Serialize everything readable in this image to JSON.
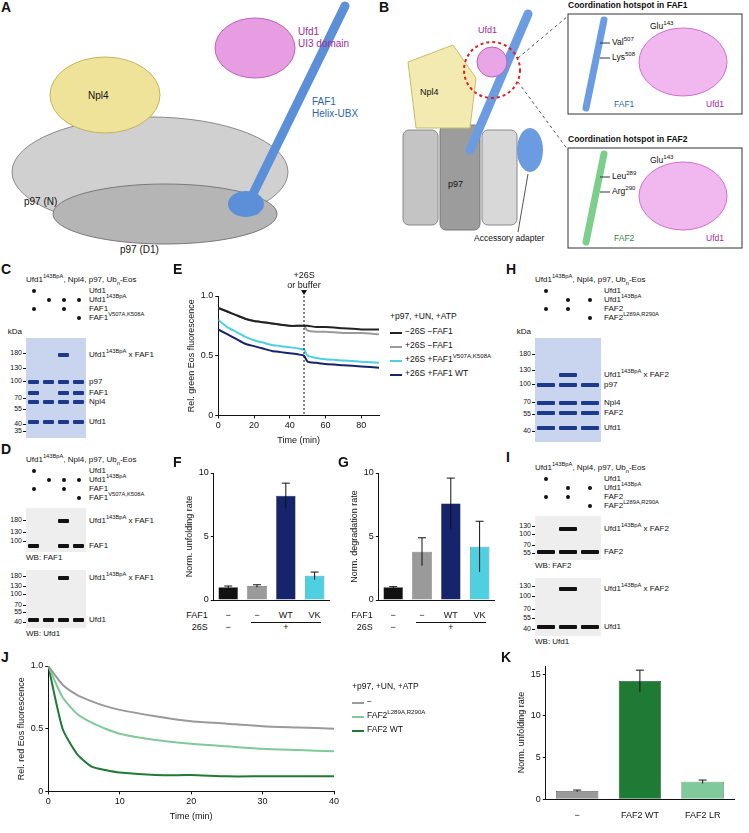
{
  "figure": {
    "A": {
      "letter": "A",
      "ufd1": "Ufd1",
      "ufd1_domain": "UI3 domain",
      "faf1": "FAF1",
      "faf1_domain": "Helix-UBX",
      "npl4": "Npl4",
      "p97_n": "p97 (N)",
      "p97_d1": "p97 (D1)"
    },
    "B": {
      "letter": "B",
      "ufd1": "Ufd1",
      "npl4": "Npl4",
      "p97": "p97",
      "adapter": "Accessory adapter",
      "insets": [
        {
          "title": "Coordination hotspot in FAF1",
          "residues": [
            [
              "Val",
              {
                "sup": "507"
              }
            ],
            [
              "Lys",
              {
                "sup": "508"
              }
            ]
          ],
          "partner_residue": [
            "Glu",
            {
              "sup": "143"
            }
          ],
          "helix": "FAF1",
          "partner": "Ufd1"
        },
        {
          "title": "Coordination hotspot in FAF2",
          "residues": [
            [
              "Leu",
              {
                "sup": "289"
              }
            ],
            [
              "Arg",
              {
                "sup": "290"
              }
            ]
          ],
          "partner_residue": [
            "Glu",
            {
              "sup": "143"
            }
          ],
          "helix": "FAF2",
          "partner": "Ufd1"
        }
      ]
    },
    "C": {
      "letter": "C",
      "header": [
        "Ufd1",
        {
          "sup": "143BpA"
        },
        ", Npl4, p97, Ub",
        {
          "sub": "n"
        },
        "-Eos"
      ],
      "rows": [
        {
          "label": [
            "Ufd1"
          ],
          "lanes": [
            true,
            false,
            false,
            false
          ]
        },
        {
          "label": [
            "Ufd1",
            {
              "sup": "143BpA"
            }
          ],
          "lanes": [
            false,
            true,
            true,
            true
          ]
        },
        {
          "label": [
            "FAF1"
          ],
          "lanes": [
            true,
            false,
            true,
            false
          ]
        },
        {
          "label": [
            "FAF1",
            {
              "sup": "V507A,K508A"
            }
          ],
          "lanes": [
            false,
            false,
            false,
            true
          ]
        }
      ],
      "blots": [
        {
          "kda_label": "kDa",
          "markers": [
            180,
            130,
            100,
            70,
            55,
            40,
            35
          ],
          "bands": [
            {
              "label": [
                "Ufd1",
                {
                  "sup": "143BpA"
                },
                " x FAF1"
              ],
              "lanes": [
                false,
                false,
                true,
                false
              ]
            },
            {
              "label": [
                "p97"
              ],
              "lanes": [
                true,
                true,
                true,
                true
              ]
            },
            {
              "label": [
                "FAF1"
              ],
              "lanes": [
                true,
                false,
                true,
                true
              ]
            },
            {
              "label": [
                "Npl4"
              ],
              "lanes": [
                true,
                true,
                true,
                true
              ]
            },
            {
              "label": [
                "Ufd1"
              ],
              "lanes": [
                true,
                true,
                true,
                true
              ]
            }
          ]
        }
      ]
    },
    "D": {
      "letter": "D",
      "header": [
        "Ufd1",
        {
          "sup": "143BpA"
        },
        ", Npl4, p97, Ub",
        {
          "sub": "n"
        },
        "-Eos"
      ],
      "rows": [
        {
          "label": [
            "Ufd1"
          ],
          "lanes": [
            true,
            false,
            false,
            false
          ]
        },
        {
          "label": [
            "Ufd1",
            {
              "sup": "143BpA"
            }
          ],
          "lanes": [
            false,
            true,
            true,
            true
          ]
        },
        {
          "label": [
            "FAF1"
          ],
          "lanes": [
            true,
            false,
            true,
            false
          ]
        },
        {
          "label": [
            "FAF1",
            {
              "sup": "V507A,K508A"
            }
          ],
          "lanes": [
            false,
            false,
            false,
            true
          ]
        }
      ],
      "blots": [
        {
          "caption": "WB: FAF1",
          "markers": [
            180,
            130,
            100
          ],
          "bands": [
            {
              "label": [
                "Ufd1",
                {
                  "sup": "143BpA"
                },
                " x FAF1"
              ],
              "lanes": [
                false,
                false,
                true,
                false
              ]
            },
            {
              "label": [
                "FAF1"
              ],
              "lanes": [
                true,
                false,
                true,
                true
              ]
            }
          ]
        },
        {
          "caption": "WB: Ufd1",
          "markers": [
            180,
            130,
            100,
            70,
            55,
            40
          ],
          "bands": [
            {
              "label": [
                "Ufd1",
                {
                  "sup": "143BpA"
                },
                " x FAF1"
              ],
              "lanes": [
                false,
                false,
                true,
                false
              ]
            },
            {
              "label": [
                "Ufd1"
              ],
              "lanes": [
                true,
                true,
                true,
                true
              ]
            }
          ]
        }
      ]
    },
    "H": {
      "letter": "H",
      "header": [
        "Ufd1",
        {
          "sup": "143BpA"
        },
        ", Npl4, p97, Ub",
        {
          "sub": "n"
        },
        "-Eos"
      ],
      "rows": [
        {
          "label": [
            "Ufd1"
          ],
          "lanes": [
            true,
            false,
            false
          ]
        },
        {
          "label": [
            "Ufd1",
            {
              "sup": "143BpA"
            }
          ],
          "lanes": [
            false,
            true,
            true
          ]
        },
        {
          "label": [
            "FAF2"
          ],
          "lanes": [
            true,
            true,
            false
          ]
        },
        {
          "label": [
            "FAF2",
            {
              "sup": "L289A,R290A"
            }
          ],
          "lanes": [
            false,
            false,
            true
          ]
        }
      ],
      "blots": [
        {
          "kda_label": "kDa",
          "markers": [
            180,
            130,
            100,
            70,
            55,
            40
          ],
          "bands": [
            {
              "label": [
                "Ufd1",
                {
                  "sup": "143BpA"
                },
                " x FAF2"
              ],
              "lanes": [
                false,
                true,
                false
              ]
            },
            {
              "label": [
                "p97"
              ],
              "lanes": [
                true,
                true,
                true
              ]
            },
            {
              "label": [
                "Npl4"
              ],
              "lanes": [
                true,
                true,
                true
              ]
            },
            {
              "label": [
                "FAF2"
              ],
              "lanes": [
                true,
                true,
                true
              ]
            },
            {
              "label": [
                "Ufd1"
              ],
              "lanes": [
                true,
                true,
                true
              ]
            }
          ]
        }
      ]
    },
    "I": {
      "letter": "I",
      "header": [
        "Ufd1",
        {
          "sup": "143BpA"
        },
        ", Npl4, p97, Ub",
        {
          "sub": "n"
        },
        "-Eos"
      ],
      "rows": [
        {
          "label": [
            "Ufd1"
          ],
          "lanes": [
            true,
            false,
            false
          ]
        },
        {
          "label": [
            "Ufd1",
            {
              "sup": "143BpA"
            }
          ],
          "lanes": [
            false,
            true,
            true
          ]
        },
        {
          "label": [
            "FAF2"
          ],
          "lanes": [
            true,
            true,
            false
          ]
        },
        {
          "label": [
            "FAF2",
            {
              "sup": "L289A,R290A"
            }
          ],
          "lanes": [
            false,
            false,
            true
          ]
        }
      ],
      "blots": [
        {
          "caption": "WB: FAF2",
          "markers": [
            130,
            100,
            70,
            55
          ],
          "bands": [
            {
              "label": [
                "Ufd1",
                {
                  "sup": "143BpA"
                },
                " x FAF2"
              ],
              "lanes": [
                false,
                true,
                false
              ]
            },
            {
              "label": [
                "FAF2"
              ],
              "lanes": [
                true,
                true,
                true
              ]
            }
          ]
        },
        {
          "caption": "WB: Ufd1",
          "markers": [
            130,
            100,
            70,
            55,
            40
          ],
          "bands": [
            {
              "label": [
                "Ufd1",
                {
                  "sup": "143BpA"
                },
                " x FAF2"
              ],
              "lanes": [
                false,
                true,
                false
              ]
            },
            {
              "label": [
                "Ufd1"
              ],
              "lanes": [
                true,
                true,
                true
              ]
            }
          ]
        }
      ]
    }
  },
  "chart_data": [
    {
      "panel": "E",
      "type": "line",
      "grid": false,
      "legend": "right",
      "x_label": "Time (min)",
      "y_label": "Rel. green Eos fluorescence",
      "legend_title": "+p97, +UN, +ATP",
      "x": [
        0,
        5,
        10,
        15,
        20,
        25,
        30,
        35,
        40,
        45,
        48,
        50,
        55,
        60,
        70,
        80,
        90
      ],
      "xlim": [
        0,
        90
      ],
      "xticks": [
        0,
        20,
        40,
        60,
        80
      ],
      "ylim": [
        0,
        1
      ],
      "yticks": [
        0,
        0.5,
        {
          "value": 1,
          "label": "1.0"
        }
      ],
      "annotation": {
        "x": 48,
        "text": [
          "+26S",
          "or buffer"
        ]
      },
      "series": [
        {
          "name": [
            "−26S −FAF1"
          ],
          "color": "#222222",
          "values": [
            0.9,
            0.87,
            0.84,
            0.81,
            0.79,
            0.78,
            0.77,
            0.76,
            0.75,
            0.75,
            0.75,
            0.75,
            0.74,
            0.74,
            0.73,
            0.72,
            0.72
          ]
        },
        {
          "name": [
            "+26S −FAF1"
          ],
          "color": "#9a9a9a",
          "values": [
            0.9,
            0.87,
            0.84,
            0.81,
            0.79,
            0.78,
            0.77,
            0.76,
            0.75,
            0.75,
            0.75,
            0.71,
            0.7,
            0.7,
            0.69,
            0.69,
            0.68
          ]
        },
        {
          "name": [
            "+26S +FAF1",
            {
              "sup": "V507A,K508A"
            }
          ],
          "color": "#4fd0e0",
          "values": [
            0.8,
            0.74,
            0.7,
            0.66,
            0.63,
            0.61,
            0.59,
            0.58,
            0.57,
            0.56,
            0.55,
            0.5,
            0.48,
            0.47,
            0.46,
            0.45,
            0.44
          ]
        },
        {
          "name": [
            "+26S +FAF1 WT"
          ],
          "color": "#16246b",
          "values": [
            0.72,
            0.68,
            0.64,
            0.6,
            0.58,
            0.56,
            0.54,
            0.53,
            0.52,
            0.51,
            0.5,
            0.45,
            0.44,
            0.43,
            0.42,
            0.41,
            0.4
          ]
        }
      ]
    },
    {
      "panel": "F",
      "type": "bar",
      "grid": false,
      "tick_labels": "y",
      "y_label": "Norm. unfolding rate",
      "ylim": [
        0,
        10
      ],
      "yticks": [
        0,
        5,
        10
      ],
      "values": [
        1,
        1.1,
        8.2,
        1.9
      ],
      "errors": [
        0.1,
        0.1,
        1.0,
        0.3
      ],
      "colors": [
        "#111111",
        "#9a9a9a",
        "#16246b",
        "#4fd0e0"
      ],
      "category_rows": [
        {
          "label": "FAF1",
          "cells": [
            "−",
            "−",
            "WT",
            "VK"
          ],
          "spans": [
            1,
            1,
            1,
            1
          ]
        },
        {
          "label": "26S",
          "cells": [
            "−",
            "+"
          ],
          "spans": [
            1,
            3
          ]
        }
      ]
    },
    {
      "panel": "G",
      "type": "bar",
      "grid": false,
      "tick_labels": "y",
      "y_label": "Norm. degradation rate",
      "ylim": [
        0,
        10
      ],
      "yticks": [
        0,
        5,
        10
      ],
      "values": [
        1,
        3.8,
        7.6,
        4.2
      ],
      "errors": [
        0.05,
        1.1,
        2.0,
        2.0
      ],
      "colors": [
        "#111111",
        "#9a9a9a",
        "#16246b",
        "#4fd0e0"
      ],
      "category_rows": [
        {
          "label": "FAF1",
          "cells": [
            "−",
            "−",
            "WT",
            "VK"
          ],
          "spans": [
            1,
            1,
            1,
            1
          ]
        },
        {
          "label": "26S",
          "cells": [
            "−",
            "+"
          ],
          "spans": [
            1,
            3
          ]
        }
      ]
    },
    {
      "panel": "J",
      "type": "line",
      "grid": false,
      "legend": "right",
      "x_label": "Time (min)",
      "y_label": "Rel. red Eos fluorescence",
      "legend_title": "+p97, +UN, +ATP",
      "x": [
        0,
        2,
        4,
        6,
        8,
        10,
        15,
        20,
        25,
        30,
        35,
        40
      ],
      "xlim": [
        0,
        40
      ],
      "xticks": [
        0,
        10,
        20,
        30,
        40
      ],
      "ylim": [
        0,
        1
      ],
      "yticks": [
        0,
        0.5,
        {
          "value": 1,
          "label": "1.0"
        }
      ],
      "series": [
        {
          "name": [
            "−"
          ],
          "color": "#9a9a9a",
          "values": [
            1.0,
            0.85,
            0.77,
            0.72,
            0.68,
            0.65,
            0.6,
            0.56,
            0.54,
            0.52,
            0.51,
            0.5
          ]
        },
        {
          "name": [
            "FAF2",
            {
              "sup": "L289A,R290A"
            }
          ],
          "color": "#7fc99a",
          "values": [
            1.0,
            0.75,
            0.62,
            0.55,
            0.5,
            0.46,
            0.41,
            0.38,
            0.36,
            0.34,
            0.33,
            0.32
          ]
        },
        {
          "name": [
            "FAF2 WT"
          ],
          "color": "#1f7a35",
          "values": [
            1.0,
            0.5,
            0.3,
            0.2,
            0.17,
            0.15,
            0.13,
            0.13,
            0.12,
            0.12,
            0.12,
            0.12
          ]
        }
      ]
    },
    {
      "panel": "K",
      "type": "bar",
      "grid": false,
      "y_label": "Norm. unfolding rate",
      "categories": [
        "−",
        "FAF2 WT",
        "FAF2 LR"
      ],
      "ylim": [
        0,
        16
      ],
      "yticks": [
        0,
        5,
        10,
        15
      ],
      "values": [
        1,
        14.2,
        2.1
      ],
      "errors": [
        0.1,
        1.3,
        0.2
      ],
      "colors": [
        "#9a9a9a",
        "#1f7a35",
        "#7fc99a"
      ]
    }
  ]
}
